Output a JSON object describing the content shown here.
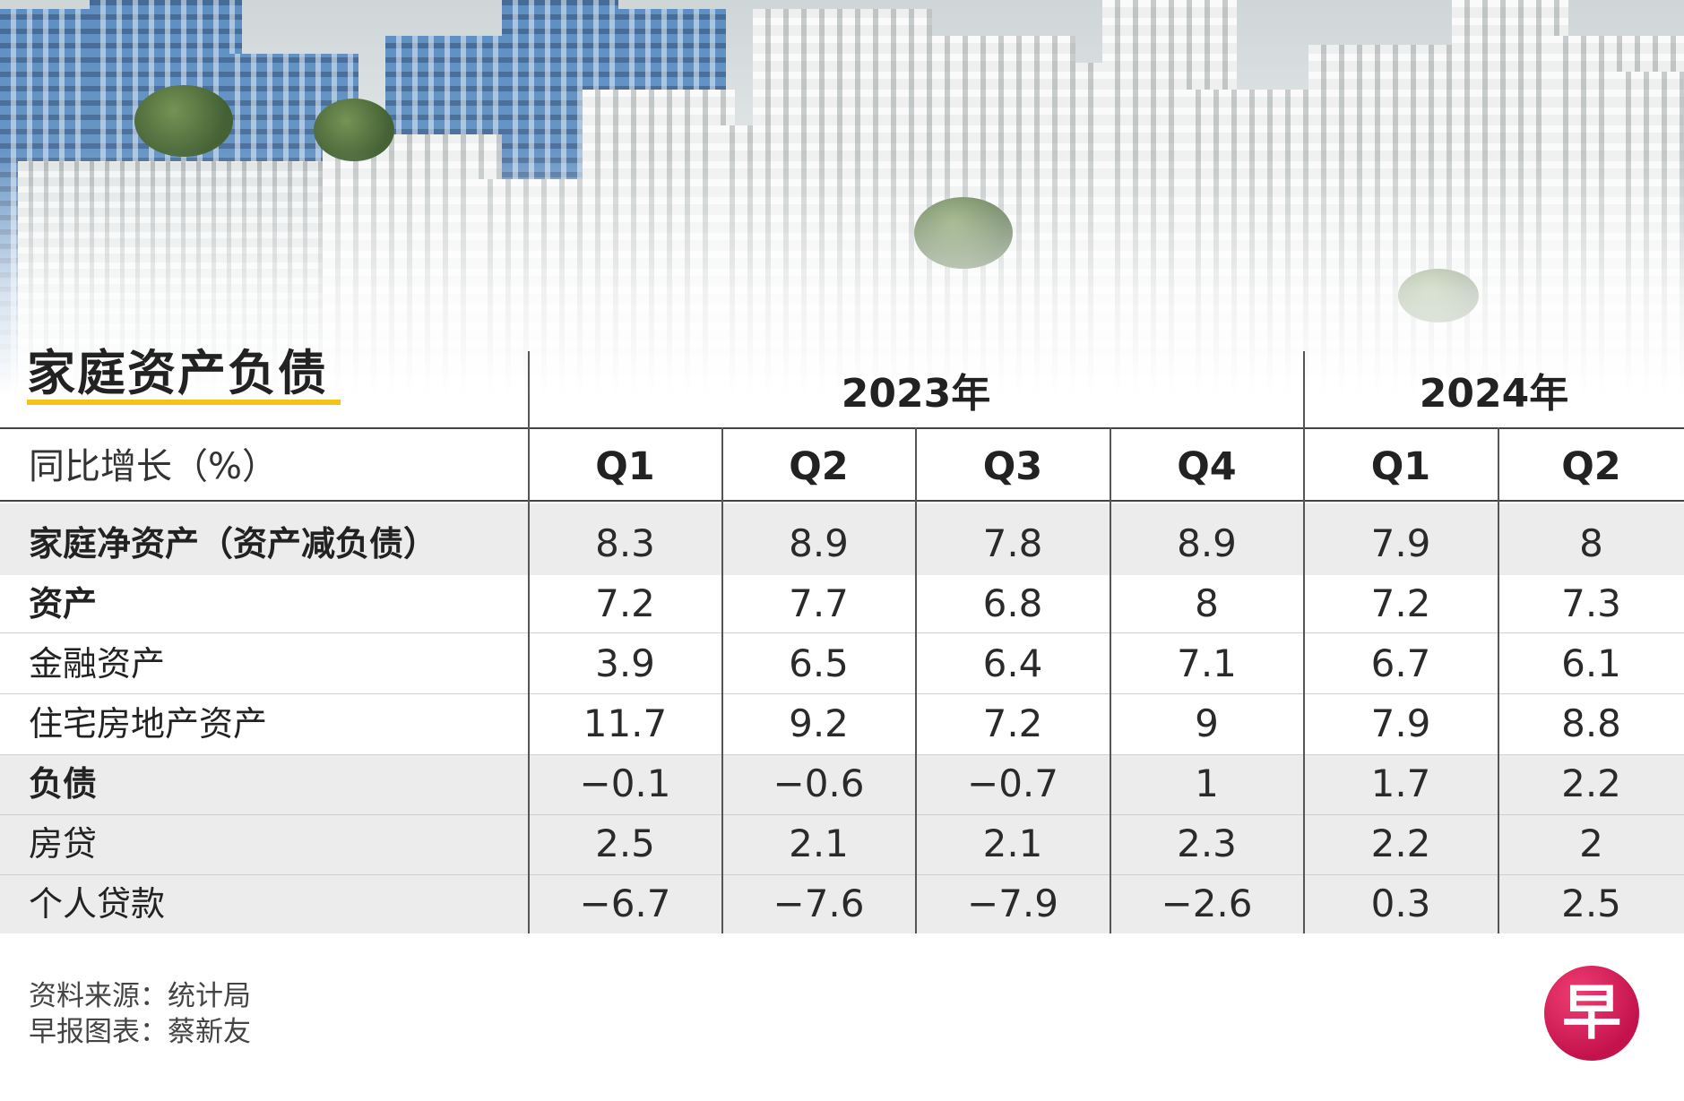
{
  "title": "家庭资产负债",
  "header_label": "同比增长（%）",
  "years": [
    "2023年",
    "2024年"
  ],
  "chart_data": {
    "type": "table",
    "title": "家庭资产负债",
    "unit_label": "同比增长（%）",
    "columns": [
      {
        "year": "2023年",
        "quarter": "Q1"
      },
      {
        "year": "2023年",
        "quarter": "Q2"
      },
      {
        "year": "2023年",
        "quarter": "Q3"
      },
      {
        "year": "2023年",
        "quarter": "Q4"
      },
      {
        "year": "2024年",
        "quarter": "Q1"
      },
      {
        "year": "2024年",
        "quarter": "Q2"
      }
    ],
    "quarters": [
      "Q1",
      "Q2",
      "Q3",
      "Q4",
      "Q1",
      "Q2"
    ],
    "rows": [
      {
        "label": "家庭净资产（资产减负债）",
        "bold": true,
        "shaded": true,
        "values": [
          "8.3",
          "8.9",
          "7.8",
          "8.9",
          "7.9",
          "8"
        ]
      },
      {
        "label": "资产",
        "bold": true,
        "shaded": false,
        "values": [
          "7.2",
          "7.7",
          "6.8",
          "8",
          "7.2",
          "7.3"
        ]
      },
      {
        "label": "金融资产",
        "bold": false,
        "shaded": false,
        "values": [
          "3.9",
          "6.5",
          "6.4",
          "7.1",
          "6.7",
          "6.1"
        ]
      },
      {
        "label": "住宅房地产资产",
        "bold": false,
        "shaded": false,
        "values": [
          "11.7",
          "9.2",
          "7.2",
          "9",
          "7.9",
          "8.8"
        ]
      },
      {
        "label": "负债",
        "bold": true,
        "shaded": true,
        "values": [
          "−0.1",
          "−0.6",
          "−0.7",
          "1",
          "1.7",
          "2.2"
        ]
      },
      {
        "label": "房贷",
        "bold": false,
        "shaded": true,
        "values": [
          "2.5",
          "2.1",
          "2.1",
          "2.3",
          "2.2",
          "2"
        ]
      },
      {
        "label": "个人贷款",
        "bold": false,
        "shaded": true,
        "values": [
          "−6.7",
          "−7.6",
          "−7.9",
          "−2.6",
          "0.3",
          "2.5"
        ]
      }
    ]
  },
  "footer": {
    "source": "资料来源：统计局",
    "credit": "早报图表：蔡新友"
  },
  "logo": {
    "glyph": "早",
    "color": "#d61b5a"
  },
  "colors": {
    "accent_underline": "#f2c318",
    "shaded_row": "#ececec"
  }
}
